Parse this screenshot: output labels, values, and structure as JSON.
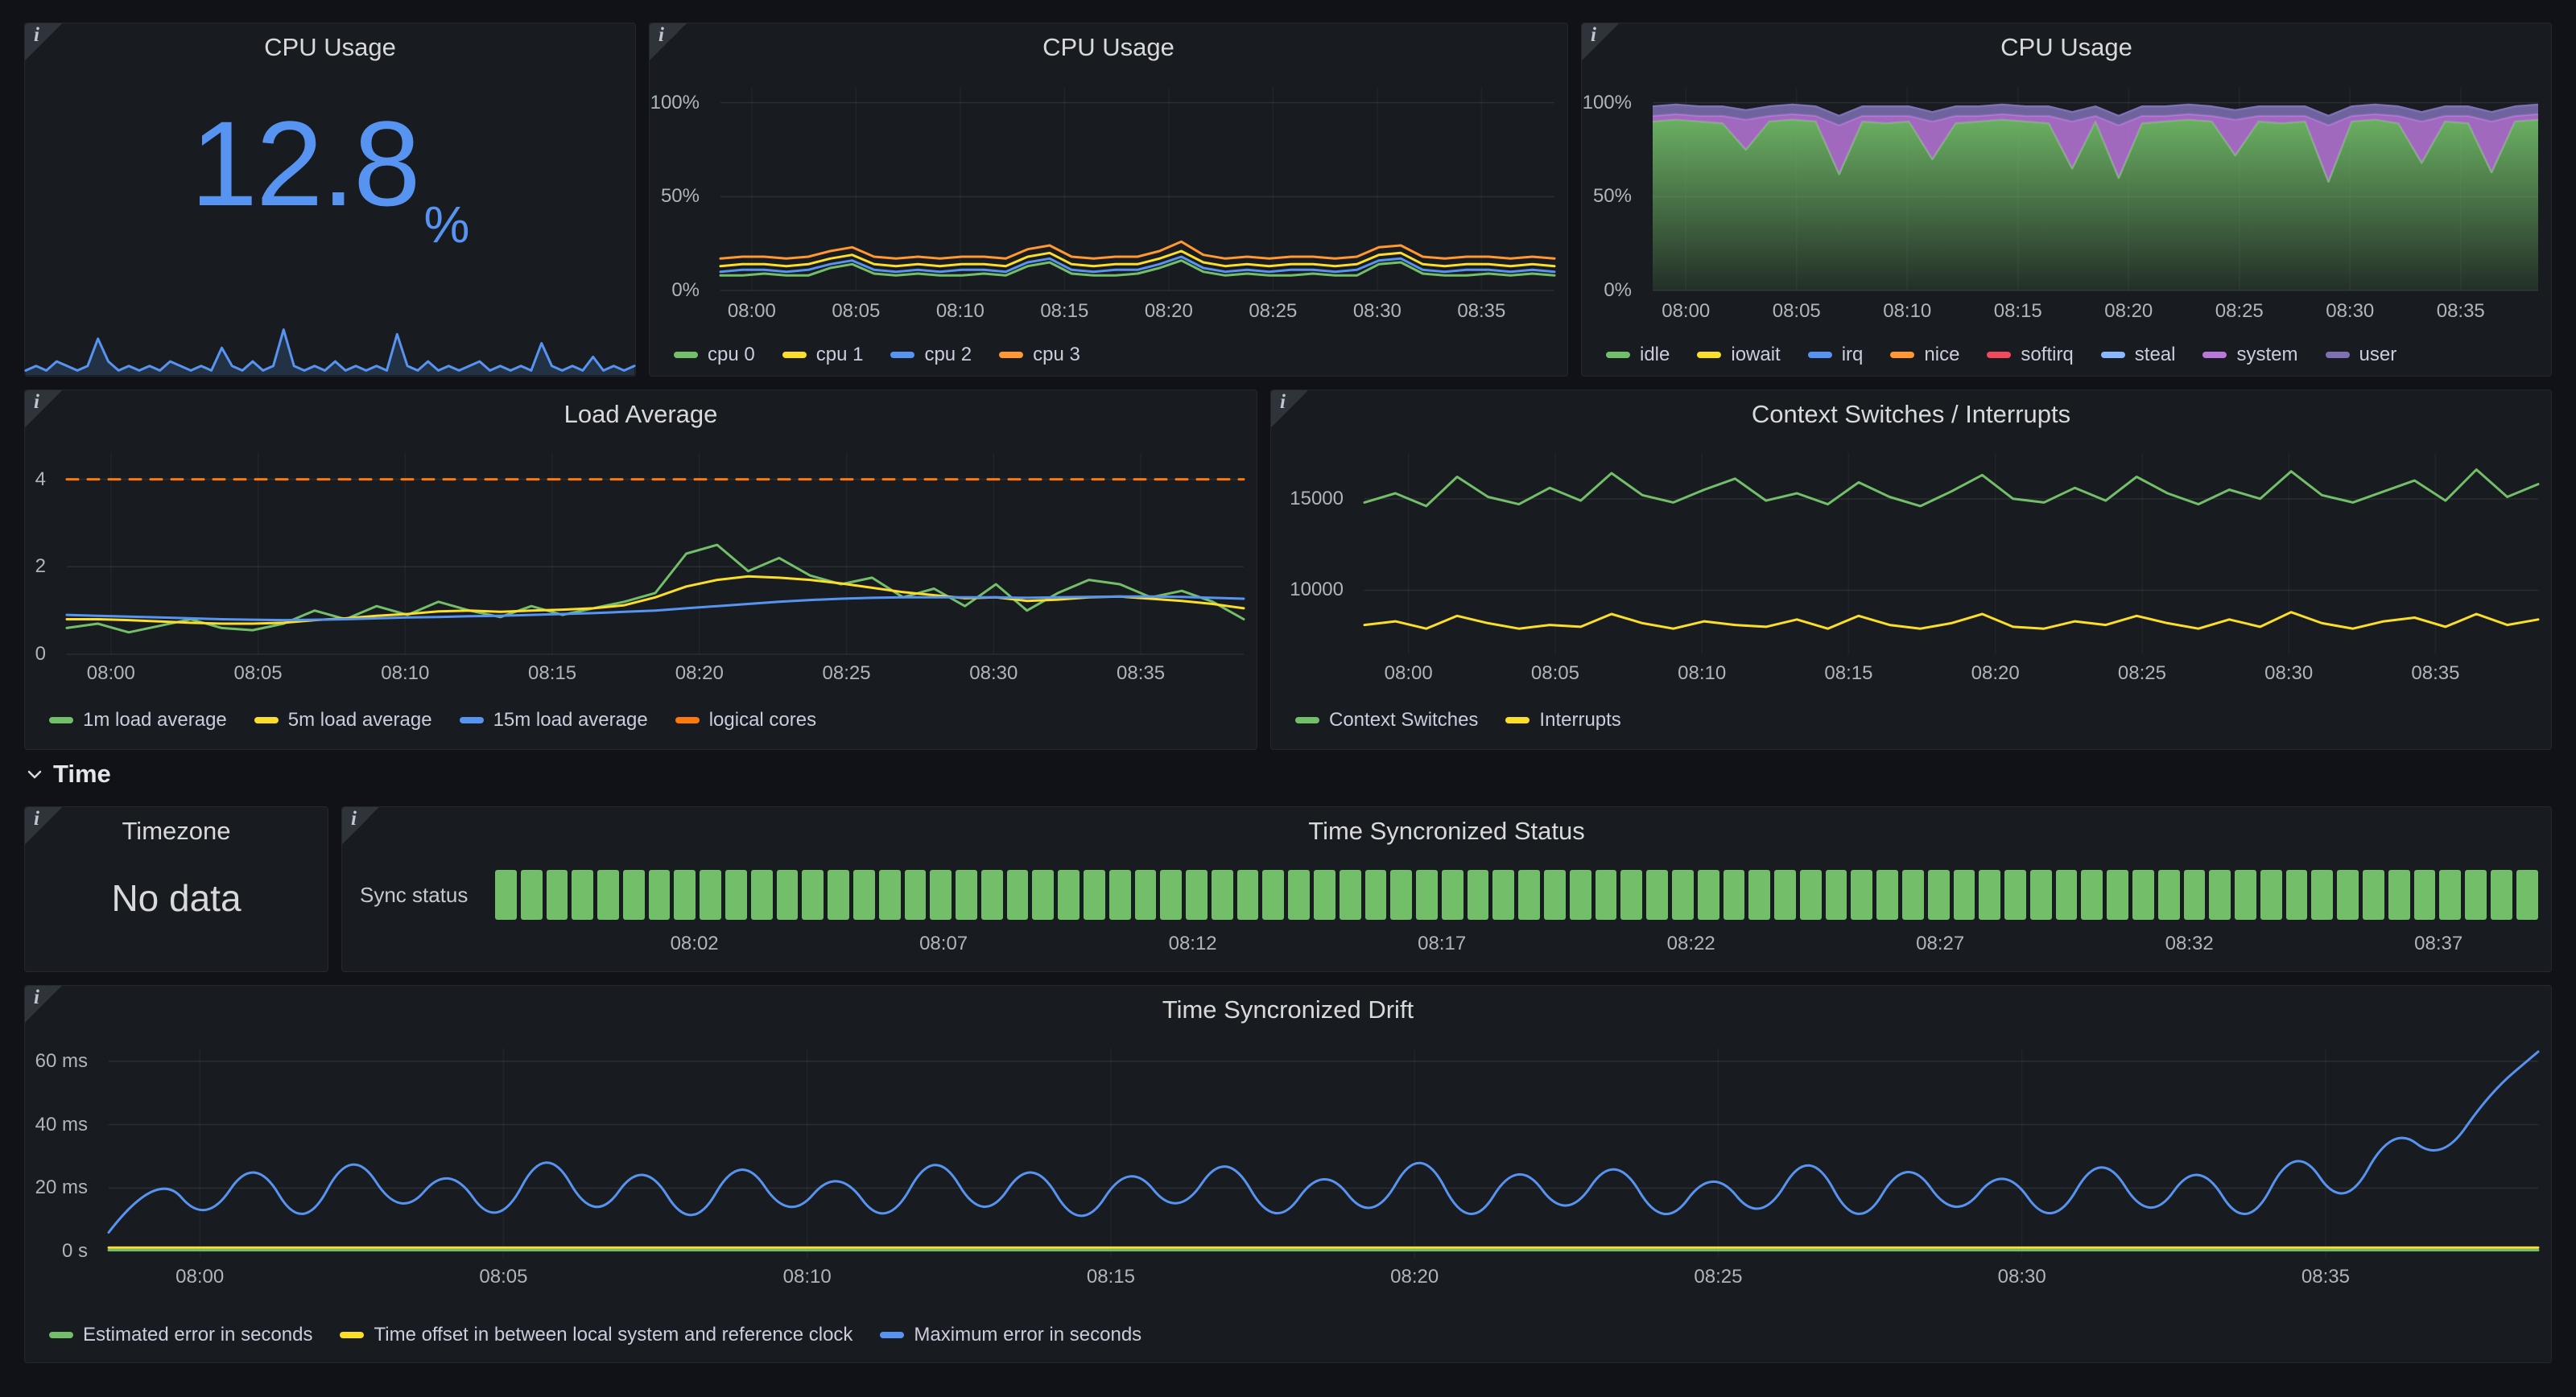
{
  "theme": {
    "background": "#111217",
    "panel_background": "#181b1f",
    "panel_border": "#25272e",
    "text_primary": "#d8d9da",
    "text_secondary": "#b0b5bd",
    "legend_text": "#ccccdc",
    "stat_blue": "#5794f2",
    "green": "#73bf69",
    "yellow": "#fade2a",
    "blue": "#5794f2",
    "orange": "#ff9830",
    "dark_orange": "#ff780a",
    "red": "#f2495c",
    "purple": "#b877d9",
    "slate_purple": "#7e70b3",
    "light_blue": "#8ab8ff",
    "status_green": "#73bf69"
  },
  "icons": {
    "panel_info": "i",
    "section_chevron": "chevron-down"
  },
  "section": {
    "title": "Time"
  },
  "panels": {
    "cpu_stat": {
      "title": "CPU Usage"
    },
    "cpu_multi": {
      "title": "CPU Usage"
    },
    "cpu_area": {
      "title": "CPU Usage"
    },
    "load": {
      "title": "Load Average"
    },
    "context": {
      "title": "Context Switches / Interrupts"
    },
    "timezone": {
      "title": "Timezone",
      "no_data": "No data"
    },
    "sync_status": {
      "title": "Time Syncronized Status",
      "label": "Sync status"
    },
    "drift": {
      "title": "Time Syncronized Drift"
    }
  },
  "chart_data": {
    "cpu_stat": {
      "type": "stat",
      "title": "CPU Usage",
      "value": "12.8",
      "unit": "%",
      "color": "#5794f2",
      "sparkline": [
        1,
        2,
        1,
        3,
        2,
        1,
        2,
        8,
        3,
        1,
        2,
        1,
        2,
        1,
        3,
        2,
        1,
        2,
        1,
        6,
        2,
        1,
        3,
        1,
        2,
        10,
        2,
        1,
        2,
        1,
        3,
        1,
        2,
        1,
        2,
        1,
        9,
        2,
        1,
        3,
        1,
        2,
        1,
        2,
        3,
        1,
        2,
        1,
        2,
        1,
        7,
        2,
        1,
        2,
        1,
        4,
        1,
        2,
        1,
        2
      ]
    },
    "cpu_multi": {
      "type": "line",
      "title": "CPU Usage",
      "ylim": [
        0,
        108
      ],
      "xdomain": [
        -1.5,
        38.5
      ],
      "yticks": [
        {
          "v": 0,
          "label": "0%"
        },
        {
          "v": 50,
          "label": "50%"
        },
        {
          "v": 100,
          "label": "100%"
        }
      ],
      "xticks": [
        {
          "m": 0,
          "label": "08:00"
        },
        {
          "m": 5,
          "label": "08:05"
        },
        {
          "m": 10,
          "label": "08:10"
        },
        {
          "m": 15,
          "label": "08:15"
        },
        {
          "m": 20,
          "label": "08:20"
        },
        {
          "m": 25,
          "label": "08:25"
        },
        {
          "m": 30,
          "label": "08:30"
        },
        {
          "m": 35,
          "label": "08:35"
        }
      ],
      "series": [
        {
          "name": "cpu 0",
          "color": "#73bf69",
          "values": [
            8,
            8,
            9,
            8,
            8,
            12,
            14,
            9,
            8,
            9,
            8,
            8,
            9,
            8,
            13,
            15,
            9,
            8,
            8,
            9,
            12,
            16,
            10,
            8,
            9,
            8,
            8,
            9,
            8,
            8,
            14,
            15,
            9,
            8,
            8,
            9,
            8,
            9,
            8
          ]
        },
        {
          "name": "cpu 1",
          "color": "#fade2a",
          "values": [
            13,
            14,
            14,
            13,
            14,
            17,
            19,
            14,
            13,
            14,
            13,
            14,
            14,
            13,
            18,
            20,
            14,
            13,
            14,
            14,
            17,
            21,
            15,
            13,
            14,
            13,
            14,
            14,
            13,
            14,
            19,
            20,
            14,
            13,
            14,
            14,
            13,
            14,
            13
          ]
        },
        {
          "name": "cpu 2",
          "color": "#5794f2",
          "values": [
            10,
            11,
            11,
            10,
            11,
            14,
            16,
            11,
            10,
            11,
            10,
            11,
            11,
            10,
            15,
            17,
            11,
            10,
            11,
            11,
            14,
            18,
            12,
            10,
            11,
            10,
            11,
            11,
            10,
            11,
            16,
            17,
            11,
            10,
            11,
            11,
            10,
            11,
            10
          ]
        },
        {
          "name": "cpu 3",
          "color": "#ff9830",
          "values": [
            17,
            18,
            18,
            17,
            18,
            21,
            23,
            18,
            17,
            18,
            17,
            18,
            18,
            17,
            22,
            24,
            18,
            17,
            18,
            18,
            21,
            26,
            19,
            17,
            18,
            17,
            18,
            18,
            17,
            18,
            23,
            24,
            18,
            17,
            18,
            18,
            17,
            18,
            17
          ]
        }
      ]
    },
    "cpu_area": {
      "type": "stacked_area",
      "title": "CPU Usage",
      "ylim": [
        0,
        108
      ],
      "xdomain": [
        -1.5,
        38.5
      ],
      "yticks": [
        {
          "v": 0,
          "label": "0%"
        },
        {
          "v": 50,
          "label": "50%"
        },
        {
          "v": 100,
          "label": "100%"
        }
      ],
      "xticks": [
        {
          "m": 0,
          "label": "08:00"
        },
        {
          "m": 5,
          "label": "08:05"
        },
        {
          "m": 10,
          "label": "08:10"
        },
        {
          "m": 15,
          "label": "08:15"
        },
        {
          "m": 20,
          "label": "08:20"
        },
        {
          "m": 25,
          "label": "08:25"
        },
        {
          "m": 30,
          "label": "08:30"
        },
        {
          "m": 35,
          "label": "08:35"
        }
      ],
      "layers": [
        {
          "name": "idle",
          "color": "#73bf69",
          "values": [
            90,
            91,
            90,
            89,
            75,
            90,
            91,
            90,
            62,
            90,
            89,
            90,
            70,
            89,
            90,
            91,
            90,
            89,
            65,
            90,
            60,
            89,
            90,
            91,
            90,
            72,
            90,
            89,
            90,
            58,
            90,
            91,
            89,
            68,
            90,
            89,
            63,
            90,
            91
          ]
        },
        {
          "name": "system",
          "color": "#b877d9",
          "values": [
            3,
            3,
            3,
            4,
            16,
            3,
            3,
            3,
            26,
            3,
            4,
            3,
            20,
            4,
            3,
            3,
            3,
            4,
            25,
            3,
            28,
            4,
            3,
            3,
            3,
            19,
            3,
            4,
            3,
            30,
            3,
            3,
            4,
            22,
            3,
            4,
            27,
            3,
            3
          ]
        },
        {
          "name": "user",
          "color": "#7e70b3",
          "values": [
            5
          ]
        }
      ],
      "legend": [
        {
          "name": "idle",
          "color": "#73bf69"
        },
        {
          "name": "iowait",
          "color": "#fade2a"
        },
        {
          "name": "irq",
          "color": "#5794f2"
        },
        {
          "name": "nice",
          "color": "#ff9830"
        },
        {
          "name": "softirq",
          "color": "#f2495c"
        },
        {
          "name": "steal",
          "color": "#8ab8ff"
        },
        {
          "name": "system",
          "color": "#b877d9"
        },
        {
          "name": "user",
          "color": "#7e70b3"
        }
      ]
    },
    "load": {
      "type": "line",
      "title": "Load Average",
      "ylim": [
        0,
        4.6
      ],
      "xdomain": [
        -1.5,
        38.5
      ],
      "yticks": [
        {
          "v": 0,
          "label": "0"
        },
        {
          "v": 2,
          "label": "2"
        },
        {
          "v": 4,
          "label": "4"
        }
      ],
      "xticks": [
        {
          "m": 0,
          "label": "08:00"
        },
        {
          "m": 5,
          "label": "08:05"
        },
        {
          "m": 10,
          "label": "08:10"
        },
        {
          "m": 15,
          "label": "08:15"
        },
        {
          "m": 20,
          "label": "08:20"
        },
        {
          "m": 25,
          "label": "08:25"
        },
        {
          "m": 30,
          "label": "08:30"
        },
        {
          "m": 35,
          "label": "08:35"
        }
      ],
      "series": [
        {
          "name": "1m load average",
          "color": "#73bf69",
          "values": [
            0.6,
            0.7,
            0.5,
            0.65,
            0.8,
            0.6,
            0.55,
            0.7,
            1.0,
            0.8,
            1.1,
            0.9,
            1.2,
            1.0,
            0.85,
            1.1,
            0.9,
            1.05,
            1.2,
            1.4,
            2.3,
            2.5,
            1.9,
            2.2,
            1.8,
            1.6,
            1.75,
            1.3,
            1.5,
            1.1,
            1.6,
            1.0,
            1.4,
            1.7,
            1.6,
            1.3,
            1.45,
            1.2,
            0.8
          ]
        },
        {
          "name": "5m load average",
          "color": "#fade2a",
          "values": [
            0.8,
            0.8,
            0.78,
            0.75,
            0.72,
            0.7,
            0.7,
            0.72,
            0.78,
            0.82,
            0.88,
            0.92,
            0.98,
            1.0,
            0.97,
            1.0,
            1.02,
            1.05,
            1.12,
            1.3,
            1.55,
            1.7,
            1.78,
            1.75,
            1.7,
            1.62,
            1.52,
            1.42,
            1.35,
            1.28,
            1.3,
            1.22,
            1.25,
            1.3,
            1.32,
            1.27,
            1.22,
            1.15,
            1.05
          ]
        },
        {
          "name": "15m load average",
          "color": "#5794f2",
          "values": [
            0.9,
            0.88,
            0.86,
            0.84,
            0.82,
            0.8,
            0.79,
            0.78,
            0.79,
            0.8,
            0.82,
            0.84,
            0.85,
            0.87,
            0.88,
            0.9,
            0.92,
            0.94,
            0.97,
            1.0,
            1.05,
            1.1,
            1.15,
            1.2,
            1.24,
            1.27,
            1.29,
            1.3,
            1.3,
            1.3,
            1.3,
            1.29,
            1.3,
            1.31,
            1.32,
            1.32,
            1.31,
            1.29,
            1.27
          ]
        },
        {
          "name": "logical cores",
          "color": "#ff780a",
          "dash": "14,12",
          "values": [
            4
          ]
        }
      ]
    },
    "context": {
      "type": "line",
      "title": "Context Switches / Interrupts",
      "ylim": [
        6500,
        17500
      ],
      "xdomain": [
        -1.5,
        38.5
      ],
      "yticks": [
        {
          "v": 10000,
          "label": "10000"
        },
        {
          "v": 15000,
          "label": "15000"
        }
      ],
      "xticks": [
        {
          "m": 0,
          "label": "08:00"
        },
        {
          "m": 5,
          "label": "08:05"
        },
        {
          "m": 10,
          "label": "08:10"
        },
        {
          "m": 15,
          "label": "08:15"
        },
        {
          "m": 20,
          "label": "08:20"
        },
        {
          "m": 25,
          "label": "08:25"
        },
        {
          "m": 30,
          "label": "08:30"
        },
        {
          "m": 35,
          "label": "08:35"
        }
      ],
      "series": [
        {
          "name": "Context Switches",
          "color": "#73bf69",
          "values": [
            14800,
            15300,
            14600,
            16200,
            15100,
            14700,
            15600,
            14900,
            16400,
            15200,
            14800,
            15500,
            16100,
            14900,
            15300,
            14700,
            15900,
            15100,
            14600,
            15400,
            16300,
            15000,
            14800,
            15600,
            14900,
            16200,
            15300,
            14700,
            15500,
            15000,
            16500,
            15200,
            14800,
            15400,
            16000,
            14900,
            16600,
            15100,
            15800
          ]
        },
        {
          "name": "Interrupts",
          "color": "#fade2a",
          "values": [
            8100,
            8300,
            7900,
            8600,
            8200,
            7900,
            8100,
            8000,
            8700,
            8200,
            7900,
            8300,
            8100,
            8000,
            8400,
            7900,
            8600,
            8100,
            7900,
            8200,
            8700,
            8000,
            7900,
            8300,
            8100,
            8600,
            8200,
            7900,
            8400,
            8000,
            8800,
            8200,
            7900,
            8300,
            8500,
            8000,
            8700,
            8100,
            8400
          ]
        }
      ]
    },
    "sync_status": {
      "type": "status",
      "title": "Time Syncronized Status",
      "segments": 80,
      "color": "#73bf69",
      "xdomain": [
        -2,
        39
      ],
      "xticks": [
        {
          "m": 2,
          "label": "08:02"
        },
        {
          "m": 7,
          "label": "08:07"
        },
        {
          "m": 12,
          "label": "08:12"
        },
        {
          "m": 17,
          "label": "08:17"
        },
        {
          "m": 22,
          "label": "08:22"
        },
        {
          "m": 27,
          "label": "08:27"
        },
        {
          "m": 32,
          "label": "08:32"
        },
        {
          "m": 37,
          "label": "08:37"
        }
      ]
    },
    "drift": {
      "type": "line",
      "title": "Time Syncronized Drift",
      "ylim": [
        -2,
        64
      ],
      "xdomain": [
        -1.5,
        38.5
      ],
      "yticks": [
        {
          "v": 0,
          "label": "0 s"
        },
        {
          "v": 20,
          "label": "20 ms"
        },
        {
          "v": 40,
          "label": "40 ms"
        },
        {
          "v": 60,
          "label": "60 ms"
        }
      ],
      "xticks": [
        {
          "m": 0,
          "label": "08:00"
        },
        {
          "m": 5,
          "label": "08:05"
        },
        {
          "m": 10,
          "label": "08:10"
        },
        {
          "m": 15,
          "label": "08:15"
        },
        {
          "m": 20,
          "label": "08:20"
        },
        {
          "m": 25,
          "label": "08:25"
        },
        {
          "m": 30,
          "label": "08:30"
        },
        {
          "m": 35,
          "label": "08:35"
        }
      ],
      "series": [
        {
          "name": "Estimated error in seconds",
          "color": "#73bf69",
          "values": [
            0.4
          ]
        },
        {
          "name": "Time offset in between local system and reference clock",
          "color": "#fade2a",
          "values": [
            1.2
          ]
        },
        {
          "name": "Maximum error in seconds",
          "color": "#5794f2",
          "smooth": true,
          "values": [
            6,
            26,
            8,
            31,
            5,
            34,
            10,
            28,
            6,
            35,
            8,
            30,
            5,
            32,
            9,
            27,
            6,
            34,
            8,
            31,
            5,
            29,
            10,
            33,
            6,
            28,
            8,
            35,
            5,
            30,
            9,
            32,
            6,
            27,
            8,
            34,
            5,
            31,
            9,
            28,
            6,
            33,
            8,
            30,
            5,
            35,
            12,
            40,
            28,
            50,
            63
          ]
        }
      ]
    }
  }
}
